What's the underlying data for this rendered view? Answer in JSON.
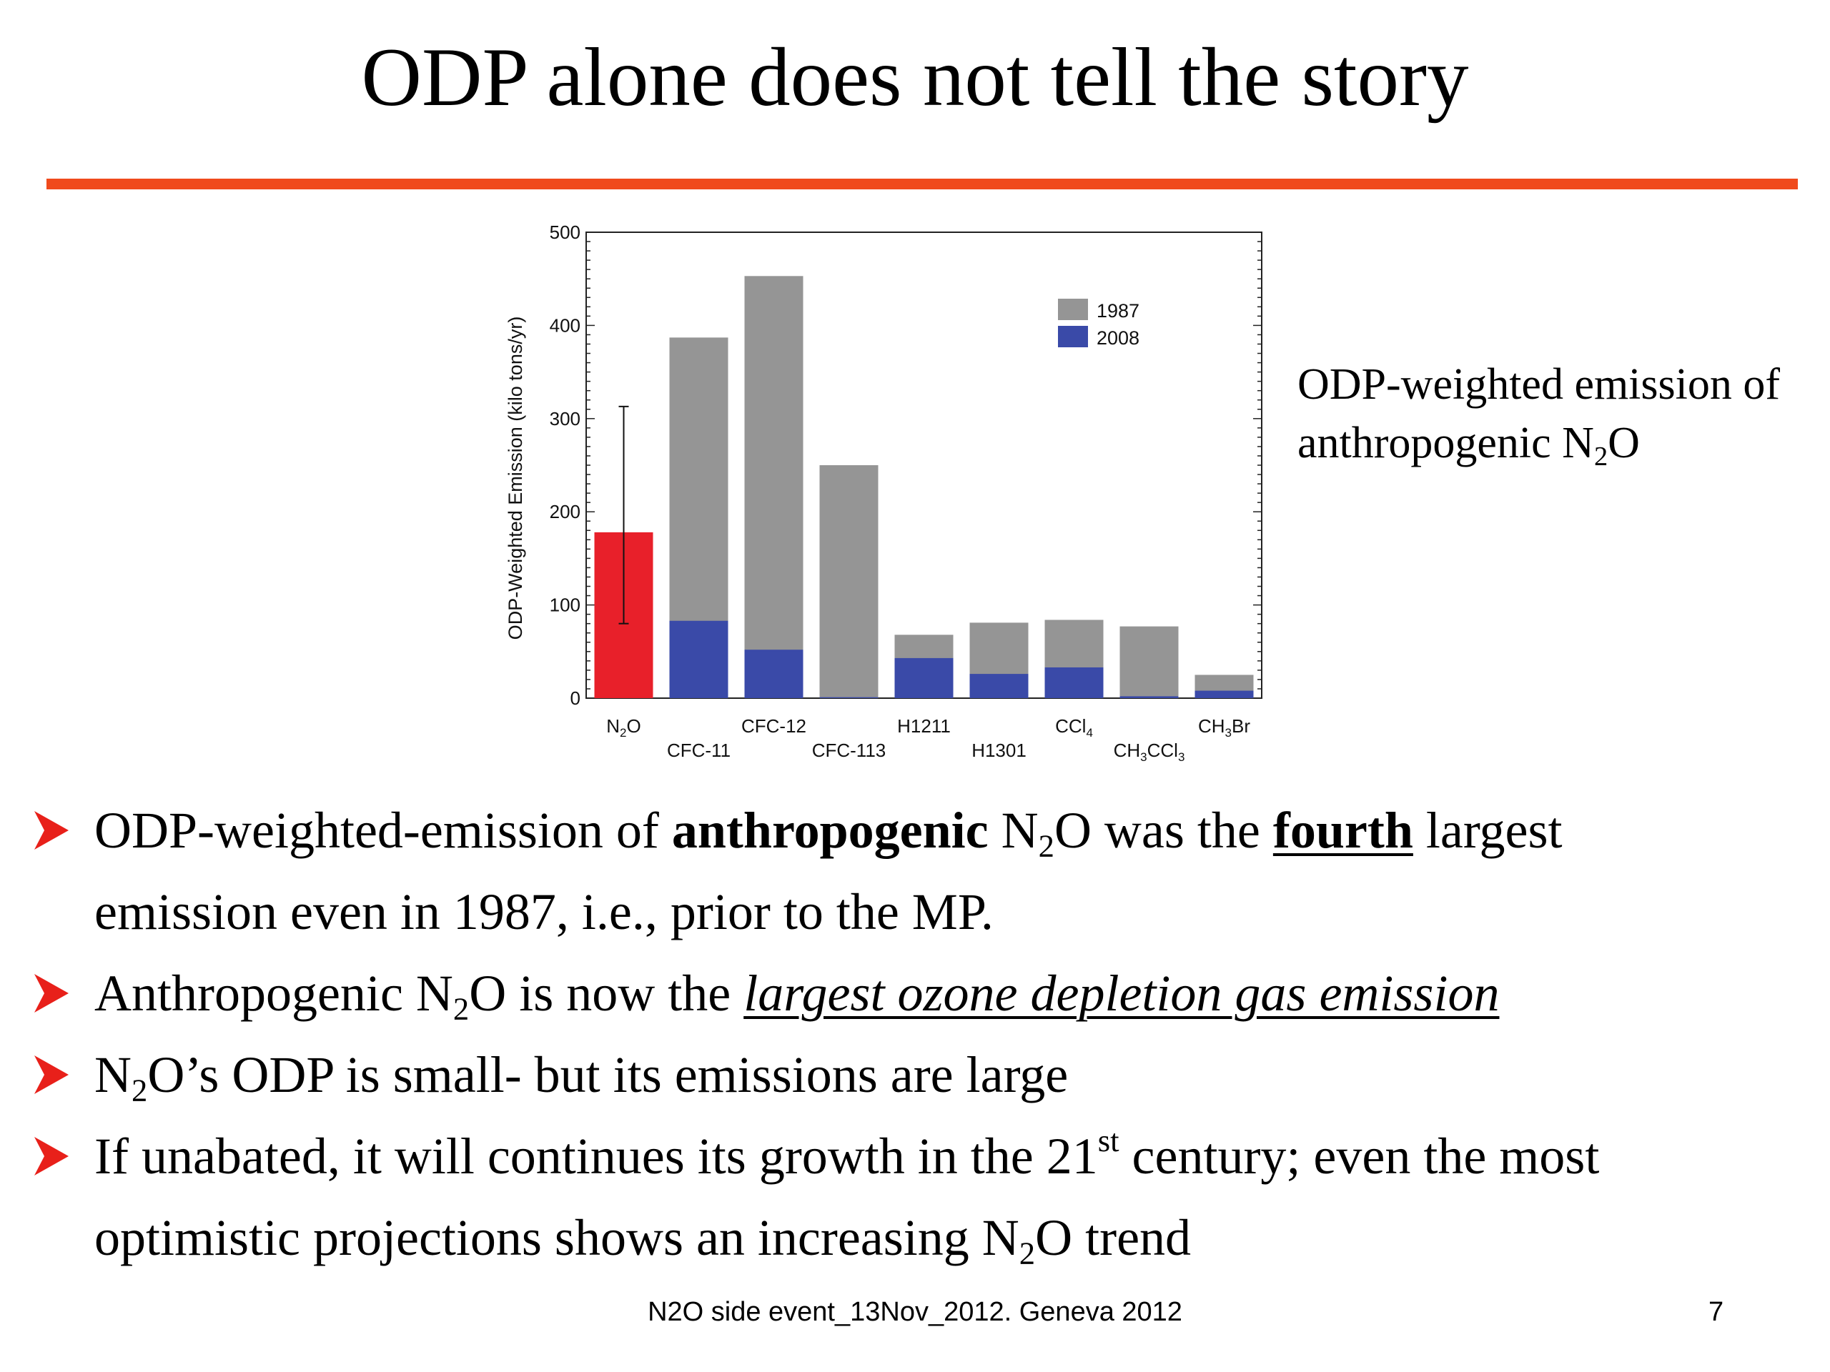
{
  "slide": {
    "title": "ODP alone does not tell the story",
    "caption_line1": "ODP-weighted emission of",
    "caption_line2_pre": "anthropogenic N",
    "caption_line2_sub": "2",
    "caption_line2_post": "O",
    "footer": "N2O side event_13Nov_2012. Geneva 2012",
    "page_number": "7",
    "accent_color": "#f04a1c",
    "bullet_color": "#e8201a"
  },
  "bullets": [
    {
      "p1": "ODP-weighted-emission of ",
      "p2_bold": "anthropogenic",
      "p3": " N",
      "p4_sub": "2",
      "p5": "O was the ",
      "p6_bold_u": "fourth",
      "p7": " largest",
      "p8": "emission even in 1987, i.e., prior to the MP."
    },
    {
      "p1": "Anthropogenic N",
      "p2_sub": "2",
      "p3": "O is now the ",
      "p4_iu": "largest ozone depletion gas emission"
    },
    {
      "p1": "N",
      "p2_sub": "2",
      "p3": "O’s ODP is small- but its emissions are large"
    },
    {
      "p1": "If unabated, it will continues its growth in the 21",
      "p2_sup": "st",
      "p3": " century; even the most",
      "p4": "optimistic projections shows an increasing N",
      "p5_sub": "2",
      "p6": "O trend"
    }
  ],
  "chart_data": {
    "type": "bar",
    "ylabel": "ODP-Weighted Emission (kilo tons/yr)",
    "ylim": [
      0,
      500
    ],
    "yticks": [
      0,
      100,
      200,
      300,
      400,
      500
    ],
    "legend_position": "top-right",
    "categories": [
      {
        "base": "N",
        "sub": "2",
        "rest": "O"
      },
      {
        "base": "CFC-11",
        "sub": "",
        "rest": ""
      },
      {
        "base": "CFC-12",
        "sub": "",
        "rest": ""
      },
      {
        "base": "CFC-113",
        "sub": "",
        "rest": ""
      },
      {
        "base": "H1211",
        "sub": "",
        "rest": ""
      },
      {
        "base": "H1301",
        "sub": "",
        "rest": ""
      },
      {
        "base": "CCl",
        "sub": "4",
        "rest": ""
      },
      {
        "base": "CH",
        "sub": "3",
        "rest": "CCl",
        "sub2": "3"
      },
      {
        "base": "CH",
        "sub": "3",
        "rest": "Br"
      }
    ],
    "n2o": {
      "value": 178,
      "error_low": 80,
      "error_high": 313,
      "color": "#e8202a"
    },
    "series": [
      {
        "name": "1987",
        "color": "#959595",
        "values": [
          null,
          387,
          453,
          250,
          68,
          81,
          84,
          77,
          25
        ]
      },
      {
        "name": "2008",
        "color": "#3a4aa8",
        "values": [
          null,
          83,
          52,
          1,
          43,
          26,
          33,
          2,
          8
        ]
      }
    ]
  }
}
